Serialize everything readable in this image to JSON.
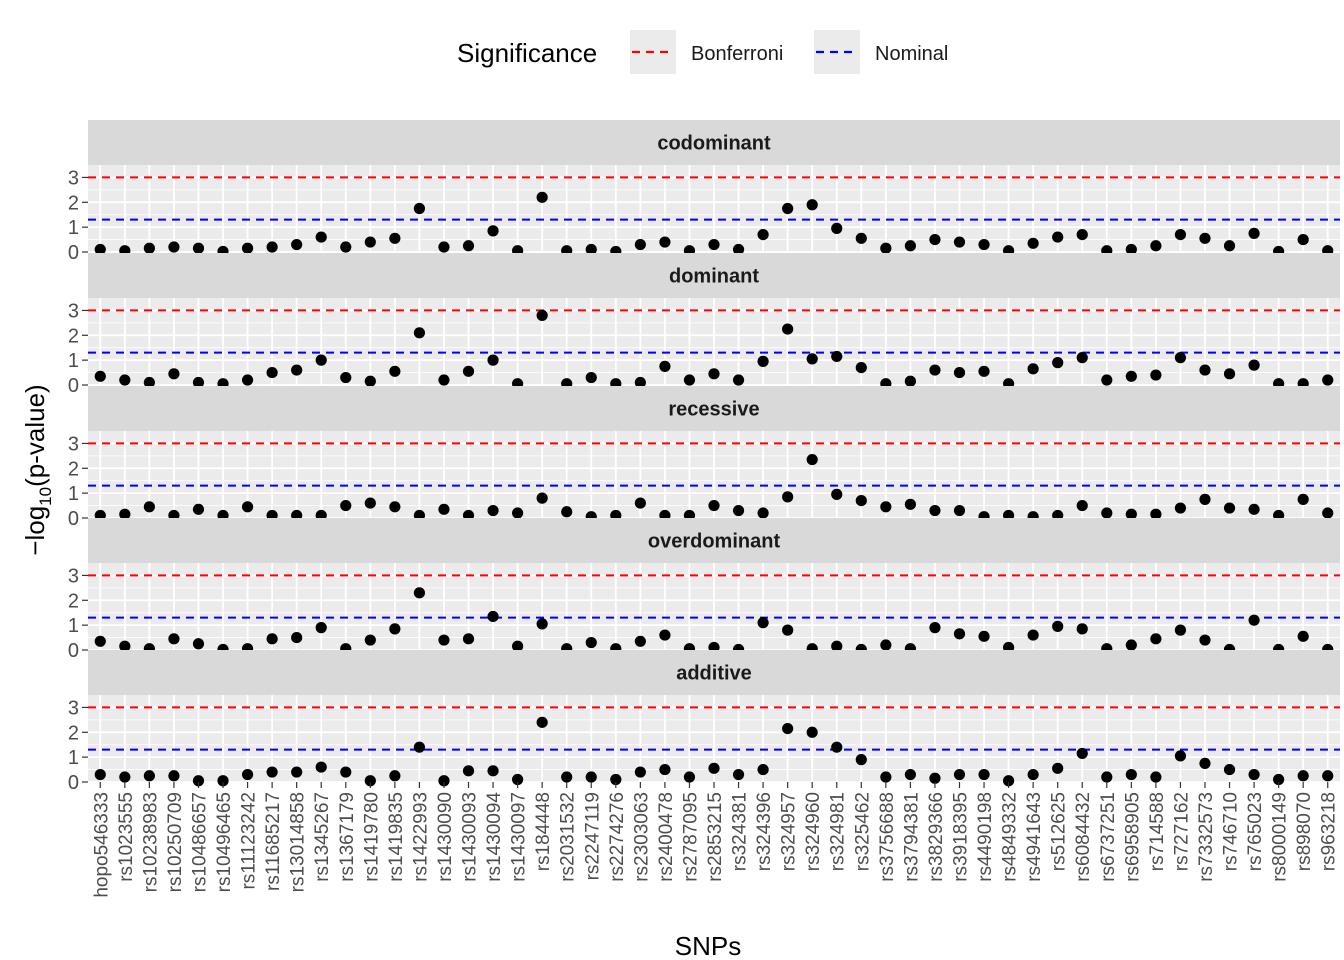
{
  "chart_data": {
    "type": "scatter",
    "xlabel": "SNPs",
    "ylabel_parts": [
      "−log",
      "10",
      "(p-value)"
    ],
    "ylim": [
      0,
      3.5
    ],
    "yticks": [
      0,
      1,
      2,
      3
    ],
    "legend": {
      "title": "Significance",
      "position": "top",
      "items": [
        {
          "label": "Bonferroni",
          "color": "#ff0000",
          "y": 3.0
        },
        {
          "label": "Nominal",
          "color": "#0000ff",
          "y": 1.3
        }
      ]
    },
    "categories": [
      "hopo546333",
      "rs1023555",
      "rs10238983",
      "rs10250709",
      "rs10486657",
      "rs10496465",
      "rs11123242",
      "rs11685217",
      "rs13014858",
      "rs1345267",
      "rs1367179",
      "rs1419780",
      "rs1419835",
      "rs1422993",
      "rs1430090",
      "rs1430093",
      "rs1430094",
      "rs1430097",
      "rs184448",
      "rs2031532",
      "rs2247119",
      "rs2274276",
      "rs2303063",
      "rs2400478",
      "rs2787095",
      "rs2853215",
      "rs324381",
      "rs324396",
      "rs324957",
      "rs324960",
      "rs324981",
      "rs325462",
      "rs3756688",
      "rs3794381",
      "rs3829366",
      "rs3918395",
      "rs4490198",
      "rs4849332",
      "rs4941643",
      "rs512625",
      "rs6084432",
      "rs6737251",
      "rs6958905",
      "rs714588",
      "rs727162",
      "rs7332573",
      "rs746710",
      "rs765023",
      "rs8000149",
      "rs898070",
      "rs963218"
    ],
    "panels": [
      {
        "name": "codominant",
        "values": [
          0.1,
          0.05,
          0.15,
          0.2,
          0.15,
          0.02,
          0.15,
          0.2,
          0.3,
          0.6,
          0.2,
          0.4,
          0.55,
          1.75,
          0.2,
          0.25,
          0.85,
          0.05,
          2.2,
          0.05,
          0.1,
          0.02,
          0.3,
          0.4,
          0.05,
          0.3,
          0.1,
          0.7,
          1.75,
          1.9,
          0.95,
          0.55,
          0.15,
          0.25,
          0.5,
          0.4,
          0.3,
          0.05,
          0.35,
          0.6,
          0.7,
          0.05,
          0.1,
          0.25,
          0.7,
          0.55,
          0.25,
          0.75,
          0.02,
          0.5,
          0.05
        ]
      },
      {
        "name": "dominant",
        "values": [
          0.35,
          0.2,
          0.1,
          0.45,
          0.1,
          0.05,
          0.2,
          0.5,
          0.6,
          1.0,
          0.3,
          0.15,
          0.55,
          2.1,
          0.2,
          0.55,
          1.0,
          0.05,
          2.8,
          0.05,
          0.3,
          0.05,
          0.1,
          0.75,
          0.2,
          0.45,
          0.2,
          0.95,
          2.25,
          1.05,
          1.15,
          0.7,
          0.05,
          0.15,
          0.6,
          0.5,
          0.55,
          0.05,
          0.65,
          0.9,
          1.1,
          0.2,
          0.35,
          0.4,
          1.1,
          0.6,
          0.45,
          0.8,
          0.05,
          0.05,
          0.2
        ]
      },
      {
        "name": "recessive",
        "values": [
          0.1,
          0.15,
          0.45,
          0.1,
          0.35,
          0.1,
          0.45,
          0.1,
          0.1,
          0.1,
          0.5,
          0.6,
          0.45,
          0.1,
          0.35,
          0.1,
          0.3,
          0.2,
          0.8,
          0.25,
          0.05,
          0.1,
          0.6,
          0.1,
          0.1,
          0.5,
          0.3,
          0.2,
          0.85,
          2.35,
          0.95,
          0.7,
          0.45,
          0.55,
          0.3,
          0.3,
          0.05,
          0.1,
          0.05,
          0.1,
          0.5,
          0.2,
          0.15,
          0.15,
          0.4,
          0.75,
          0.4,
          0.35,
          0.1,
          0.75,
          0.2
        ]
      },
      {
        "name": "overdominant",
        "values": [
          0.35,
          0.15,
          0.05,
          0.45,
          0.25,
          0.02,
          0.05,
          0.45,
          0.5,
          0.9,
          0.05,
          0.4,
          0.85,
          2.3,
          0.4,
          0.45,
          1.35,
          0.15,
          1.05,
          0.05,
          0.3,
          0.05,
          0.35,
          0.6,
          0.05,
          0.1,
          0.02,
          1.1,
          0.8,
          0.05,
          0.15,
          0.02,
          0.2,
          0.05,
          0.9,
          0.65,
          0.55,
          0.1,
          0.6,
          0.95,
          0.85,
          0.05,
          0.2,
          0.45,
          0.8,
          0.4,
          0.02,
          1.2,
          0.02,
          0.55,
          0.02
        ]
      },
      {
        "name": "additive",
        "values": [
          0.3,
          0.2,
          0.25,
          0.25,
          0.05,
          0.05,
          0.3,
          0.4,
          0.4,
          0.6,
          0.4,
          0.05,
          0.25,
          1.4,
          0.05,
          0.45,
          0.45,
          0.1,
          2.4,
          0.2,
          0.2,
          0.1,
          0.4,
          0.5,
          0.2,
          0.55,
          0.3,
          0.5,
          2.15,
          2.0,
          1.4,
          0.9,
          0.2,
          0.3,
          0.15,
          0.3,
          0.3,
          0.05,
          0.3,
          0.55,
          1.15,
          0.2,
          0.3,
          0.2,
          1.05,
          0.75,
          0.5,
          0.3,
          0.1,
          0.25,
          0.25
        ]
      }
    ]
  }
}
